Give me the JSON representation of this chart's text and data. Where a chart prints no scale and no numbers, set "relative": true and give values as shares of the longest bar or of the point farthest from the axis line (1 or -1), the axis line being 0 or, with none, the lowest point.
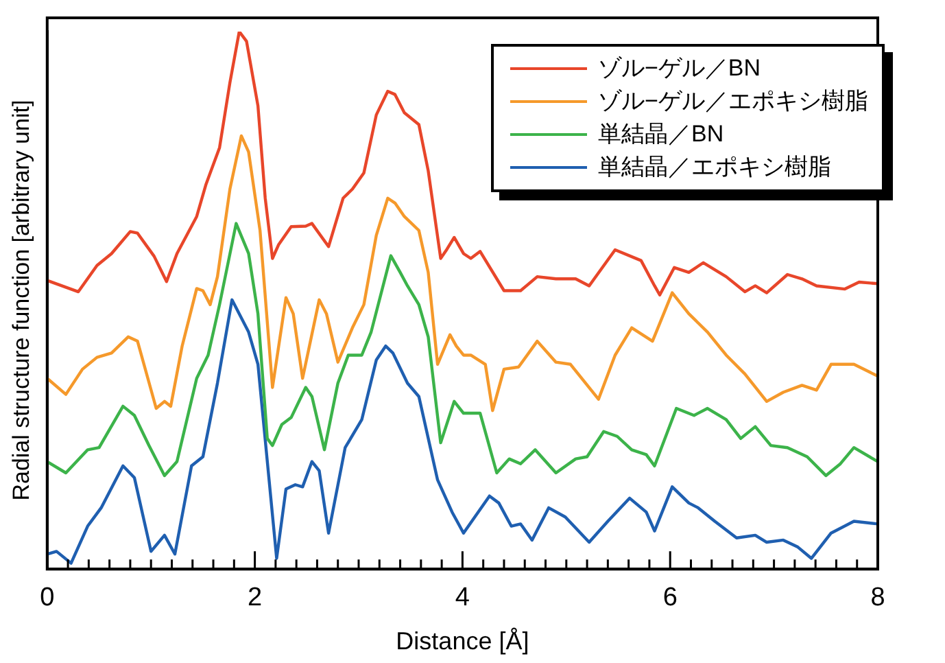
{
  "chart_data": {
    "type": "line",
    "relative": true,
    "xlabel": "Distance [Å]",
    "ylabel": "Radial structure function [arbitrary unit]",
    "legend": "top right",
    "xlim": [
      0,
      8
    ],
    "xticks": [
      0,
      {
        "value": 0.2,
        "label": null
      },
      {
        "value": 0.4,
        "label": null
      },
      {
        "value": 0.6,
        "label": null
      },
      {
        "value": 0.8,
        "label": null
      },
      {
        "value": 1,
        "label": null
      },
      {
        "value": 1.2,
        "label": null
      },
      {
        "value": 1.4,
        "label": null
      },
      {
        "value": 1.6,
        "label": null
      },
      {
        "value": 1.8,
        "label": null
      },
      2,
      {
        "value": 2.2,
        "label": null
      },
      {
        "value": 2.4,
        "label": null
      },
      {
        "value": 2.6,
        "label": null
      },
      {
        "value": 2.8,
        "label": null
      },
      {
        "value": 3,
        "label": null
      },
      {
        "value": 3.2,
        "label": null
      },
      {
        "value": 3.4,
        "label": null
      },
      {
        "value": 3.6,
        "label": null
      },
      {
        "value": 3.8,
        "label": null
      },
      4,
      {
        "value": 4.2,
        "label": null
      },
      {
        "value": 4.4,
        "label": null
      },
      {
        "value": 4.6,
        "label": null
      },
      {
        "value": 4.8,
        "label": null
      },
      {
        "value": 5,
        "label": null
      },
      {
        "value": 5.2,
        "label": null
      },
      {
        "value": 5.4,
        "label": null
      },
      {
        "value": 5.6,
        "label": null
      },
      {
        "value": 5.8,
        "label": null
      },
      6,
      {
        "value": 6.2,
        "label": null
      },
      {
        "value": 6.4,
        "label": null
      },
      {
        "value": 6.6,
        "label": null
      },
      {
        "value": 6.8,
        "label": null
      },
      {
        "value": 7,
        "label": null
      },
      {
        "value": 7.2,
        "label": null
      },
      {
        "value": 7.4,
        "label": null
      },
      {
        "value": 7.6,
        "label": null
      },
      {
        "value": 7.8,
        "label": null
      },
      8
    ],
    "series": [
      {
        "name": "ゾル−ゲル／BN",
        "color": "#e8462a",
        "x": [
          0,
          0.3,
          0.48,
          0.62,
          0.8,
          0.87,
          1.03,
          1.15,
          1.25,
          1.44,
          1.53,
          1.66,
          1.76,
          1.85,
          1.92,
          2.03,
          2.1,
          2.17,
          2.23,
          2.35,
          2.49,
          2.55,
          2.71,
          2.85,
          2.94,
          3.05,
          3.17,
          3.28,
          3.35,
          3.44,
          3.58,
          3.67,
          3.79,
          3.85,
          3.92,
          4.01,
          4.08,
          4.17,
          4.4,
          4.56,
          4.72,
          4.9,
          5.09,
          5.22,
          5.47,
          5.72,
          5.85,
          5.9,
          6.04,
          6.18,
          6.32,
          6.54,
          6.72,
          6.82,
          6.93,
          7.13,
          7.27,
          7.41,
          7.68,
          7.82,
          8
        ],
        "values": [
          0.537,
          0.516,
          0.565,
          0.587,
          0.628,
          0.625,
          0.582,
          0.535,
          0.587,
          0.656,
          0.716,
          0.784,
          0.905,
          1,
          0.982,
          0.862,
          0.69,
          0.578,
          0.604,
          0.637,
          0.638,
          0.643,
          0.6,
          0.69,
          0.707,
          0.737,
          0.845,
          0.889,
          0.883,
          0.849,
          0.827,
          0.741,
          0.578,
          0.595,
          0.617,
          0.587,
          0.578,
          0.591,
          0.518,
          0.518,
          0.544,
          0.54,
          0.54,
          0.527,
          0.594,
          0.574,
          0.527,
          0.51,
          0.561,
          0.552,
          0.57,
          0.544,
          0.516,
          0.527,
          0.514,
          0.548,
          0.54,
          0.527,
          0.521,
          0.534,
          0.531
        ]
      },
      {
        "name": "ゾル−ゲル／エポキシ樹脂",
        "color": "#f5992b",
        "x": [
          0,
          0.18,
          0.34,
          0.48,
          0.62,
          0.78,
          0.87,
          1.05,
          1.13,
          1.19,
          1.3,
          1.44,
          1.5,
          1.57,
          1.64,
          1.76,
          1.87,
          1.94,
          2.05,
          2.17,
          2.3,
          2.37,
          2.46,
          2.62,
          2.69,
          2.8,
          2.94,
          3.05,
          3.17,
          3.28,
          3.35,
          3.44,
          3.58,
          3.67,
          3.76,
          3.88,
          3.94,
          4.01,
          4.08,
          4.22,
          4.29,
          4.4,
          4.54,
          4.72,
          4.9,
          5.04,
          5.31,
          5.47,
          5.63,
          5.83,
          6.02,
          6.18,
          6.36,
          6.54,
          6.72,
          6.93,
          7.09,
          7.27,
          7.41,
          7.55,
          7.77,
          8
        ],
        "values": [
          0.355,
          0.325,
          0.372,
          0.394,
          0.402,
          0.432,
          0.424,
          0.299,
          0.312,
          0.303,
          0.415,
          0.522,
          0.518,
          0.492,
          0.544,
          0.707,
          0.806,
          0.776,
          0.63,
          0.338,
          0.505,
          0.475,
          0.355,
          0.501,
          0.475,
          0.385,
          0.449,
          0.492,
          0.621,
          0.69,
          0.681,
          0.656,
          0.63,
          0.552,
          0.381,
          0.436,
          0.415,
          0.398,
          0.398,
          0.381,
          0.295,
          0.372,
          0.376,
          0.424,
          0.385,
          0.381,
          0.316,
          0.398,
          0.449,
          0.424,
          0.514,
          0.475,
          0.441,
          0.398,
          0.363,
          0.312,
          0.329,
          0.342,
          0.333,
          0.381,
          0.381,
          0.359
        ]
      },
      {
        "name": "単結晶／BN",
        "color": "#3cb34a",
        "x": [
          0,
          0.18,
          0.39,
          0.5,
          0.73,
          0.84,
          0.98,
          1.13,
          1.25,
          1.44,
          1.55,
          1.66,
          1.82,
          1.94,
          2.03,
          2.12,
          2.17,
          2.26,
          2.35,
          2.49,
          2.55,
          2.67,
          2.8,
          2.9,
          3.03,
          3.12,
          3.31,
          3.4,
          3.47,
          3.58,
          3.67,
          3.79,
          3.92,
          4.01,
          4.17,
          4.33,
          4.45,
          4.56,
          4.7,
          4.9,
          5.09,
          5.2,
          5.36,
          5.49,
          5.63,
          5.77,
          5.85,
          6.06,
          6.23,
          6.36,
          6.54,
          6.68,
          6.82,
          6.97,
          7.13,
          7.32,
          7.5,
          7.64,
          7.77,
          8
        ],
        "values": [
          0.2,
          0.179,
          0.222,
          0.226,
          0.303,
          0.286,
          0.23,
          0.174,
          0.2,
          0.355,
          0.398,
          0.492,
          0.643,
          0.587,
          0.475,
          0.243,
          0.23,
          0.269,
          0.282,
          0.338,
          0.321,
          0.222,
          0.346,
          0.398,
          0.398,
          0.441,
          0.583,
          0.552,
          0.527,
          0.492,
          0.432,
          0.235,
          0.312,
          0.29,
          0.29,
          0.179,
          0.205,
          0.196,
          0.222,
          0.179,
          0.205,
          0.209,
          0.256,
          0.247,
          0.222,
          0.213,
          0.192,
          0.299,
          0.286,
          0.299,
          0.278,
          0.243,
          0.265,
          0.23,
          0.226,
          0.209,
          0.174,
          0.196,
          0.226,
          0.2
        ]
      },
      {
        "name": "単結晶／エポキシ樹脂",
        "color": "#1f5fb0",
        "x": [
          0,
          0.09,
          0.23,
          0.39,
          0.52,
          0.73,
          0.84,
          1,
          1.13,
          1.23,
          1.39,
          1.5,
          1.64,
          1.78,
          1.94,
          2.03,
          2.21,
          2.3,
          2.39,
          2.46,
          2.55,
          2.62,
          2.71,
          2.87,
          3.03,
          3.17,
          3.26,
          3.33,
          3.47,
          3.58,
          3.76,
          3.9,
          4.01,
          4.26,
          4.35,
          4.47,
          4.56,
          4.67,
          4.83,
          4.99,
          5.22,
          5.4,
          5.61,
          5.77,
          5.85,
          6.02,
          6.18,
          6.27,
          6.43,
          6.64,
          6.82,
          6.93,
          7.09,
          7.23,
          7.36,
          7.55,
          7.77,
          8
        ],
        "values": [
          0.028,
          0.033,
          0.011,
          0.08,
          0.114,
          0.192,
          0.17,
          0.033,
          0.063,
          0.028,
          0.192,
          0.209,
          0.346,
          0.501,
          0.441,
          0.381,
          0.02,
          0.149,
          0.157,
          0.153,
          0.2,
          0.183,
          0.067,
          0.226,
          0.278,
          0.389,
          0.415,
          0.402,
          0.346,
          0.321,
          0.166,
          0.106,
          0.067,
          0.136,
          0.123,
          0.08,
          0.084,
          0.054,
          0.114,
          0.097,
          0.05,
          0.089,
          0.132,
          0.106,
          0.071,
          0.153,
          0.123,
          0.114,
          0.089,
          0.058,
          0.063,
          0.05,
          0.054,
          0.041,
          0.02,
          0.067,
          0.089,
          0.084
        ]
      }
    ]
  }
}
